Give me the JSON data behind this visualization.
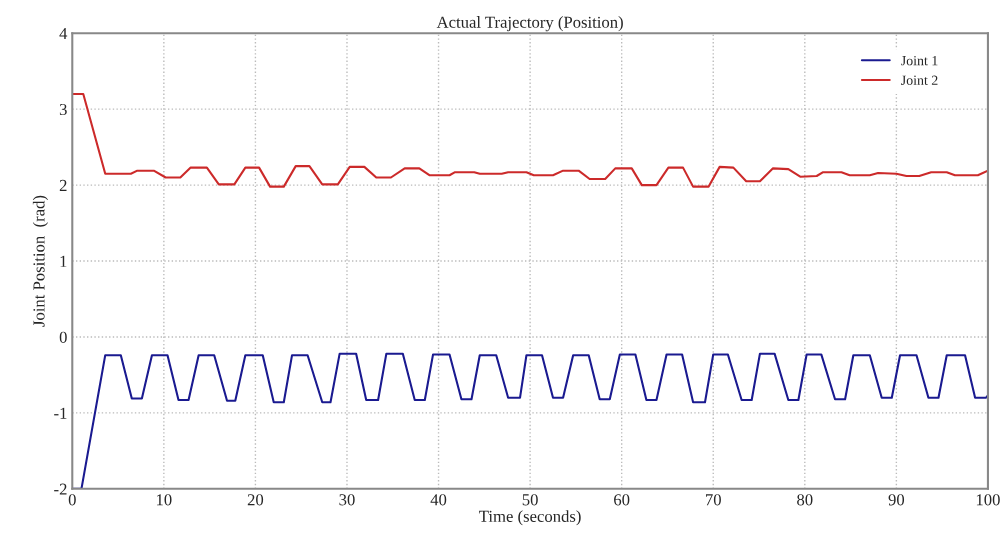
{
  "chart_data": {
    "type": "line",
    "title": "Actual Trajectory (Position)",
    "xlabel": "Time (seconds)",
    "ylabel": "Joint Position  (rad)",
    "xlim": [
      0,
      100
    ],
    "xticks": [
      0,
      10,
      20,
      30,
      40,
      50,
      60,
      70,
      80,
      90,
      100
    ],
    "ylim": [
      -2,
      4
    ],
    "yticks": [
      -2,
      -1,
      0,
      1,
      2,
      3,
      4
    ],
    "grid": true,
    "legend": "top right",
    "line_style": "solid",
    "marker": "none",
    "series": [
      {
        "name": "Joint 1",
        "color": "#1a1a90",
        "x": [
          0,
          1.0,
          3.6,
          5.3,
          6.5,
          7.6,
          8.7,
          10.4,
          11.6,
          12.7,
          13.8,
          15.5,
          16.9,
          17.8,
          18.9,
          20.8,
          22.0,
          23.1,
          24.0,
          25.7,
          27.3,
          28.2,
          29.2,
          31.0,
          32.1,
          33.4,
          34.3,
          36.1,
          37.4,
          38.5,
          39.4,
          41.2,
          42.5,
          43.6,
          44.5,
          46.3,
          47.6,
          48.9,
          49.6,
          51.3,
          52.5,
          53.6,
          54.7,
          56.4,
          57.6,
          58.7,
          59.8,
          61.5,
          62.7,
          63.8,
          64.9,
          66.6,
          67.8,
          69.1,
          70.0,
          71.6,
          73.1,
          74.2,
          75.1,
          76.7,
          78.2,
          79.3,
          80.2,
          81.8,
          83.3,
          84.4,
          85.3,
          87.1,
          88.4,
          89.5,
          90.4,
          92.2,
          93.5,
          94.6,
          95.5,
          97.5,
          98.6,
          99.8,
          100
        ],
        "values": [
          -2,
          -2,
          -0.24,
          -0.24,
          -0.81,
          -0.81,
          -0.24,
          -0.24,
          -0.83,
          -0.83,
          -0.24,
          -0.24,
          -0.84,
          -0.84,
          -0.24,
          -0.24,
          -0.86,
          -0.86,
          -0.24,
          -0.24,
          -0.86,
          -0.86,
          -0.22,
          -0.22,
          -0.83,
          -0.83,
          -0.22,
          -0.22,
          -0.83,
          -0.83,
          -0.23,
          -0.23,
          -0.82,
          -0.82,
          -0.24,
          -0.24,
          -0.8,
          -0.8,
          -0.24,
          -0.24,
          -0.8,
          -0.8,
          -0.24,
          -0.24,
          -0.82,
          -0.82,
          -0.23,
          -0.23,
          -0.83,
          -0.83,
          -0.23,
          -0.23,
          -0.86,
          -0.86,
          -0.23,
          -0.23,
          -0.83,
          -0.83,
          -0.22,
          -0.22,
          -0.83,
          -0.83,
          -0.23,
          -0.23,
          -0.82,
          -0.82,
          -0.24,
          -0.24,
          -0.8,
          -0.8,
          -0.24,
          -0.24,
          -0.8,
          -0.8,
          -0.24,
          -0.24,
          -0.8,
          -0.8,
          -0.77
        ]
      },
      {
        "name": "Joint 2",
        "color": "#cc2a2a",
        "x": [
          0,
          1.2,
          3.6,
          6.4,
          7.1,
          8.9,
          10.2,
          11.8,
          12.9,
          14.7,
          16.0,
          17.7,
          18.9,
          20.4,
          21.6,
          23.1,
          24.4,
          25.9,
          27.3,
          29.0,
          30.3,
          31.9,
          33.2,
          34.8,
          36.3,
          37.9,
          39.0,
          41.2,
          41.8,
          43.9,
          44.5,
          46.9,
          47.6,
          49.6,
          50.4,
          52.5,
          53.6,
          55.3,
          56.5,
          58.2,
          59.3,
          61.1,
          62.2,
          63.8,
          65.1,
          66.7,
          67.8,
          69.5,
          70.7,
          72.2,
          73.6,
          75.1,
          76.5,
          78.2,
          79.5,
          81.3,
          82.0,
          84.0,
          84.9,
          87.1,
          88.0,
          90.0,
          91.1,
          92.5,
          93.8,
          95.5,
          96.4,
          98.9,
          100
        ],
        "values": [
          3.2,
          3.2,
          2.15,
          2.15,
          2.19,
          2.19,
          2.1,
          2.1,
          2.23,
          2.23,
          2.01,
          2.01,
          2.23,
          2.23,
          1.98,
          1.98,
          2.25,
          2.25,
          2.01,
          2.01,
          2.24,
          2.24,
          2.1,
          2.1,
          2.22,
          2.22,
          2.13,
          2.13,
          2.17,
          2.17,
          2.15,
          2.15,
          2.17,
          2.17,
          2.13,
          2.13,
          2.19,
          2.19,
          2.08,
          2.08,
          2.22,
          2.22,
          2.0,
          2.0,
          2.23,
          2.23,
          1.98,
          1.98,
          2.24,
          2.23,
          2.05,
          2.05,
          2.22,
          2.21,
          2.11,
          2.12,
          2.17,
          2.17,
          2.13,
          2.13,
          2.16,
          2.15,
          2.12,
          2.12,
          2.17,
          2.17,
          2.13,
          2.13,
          2.19
        ]
      }
    ]
  }
}
